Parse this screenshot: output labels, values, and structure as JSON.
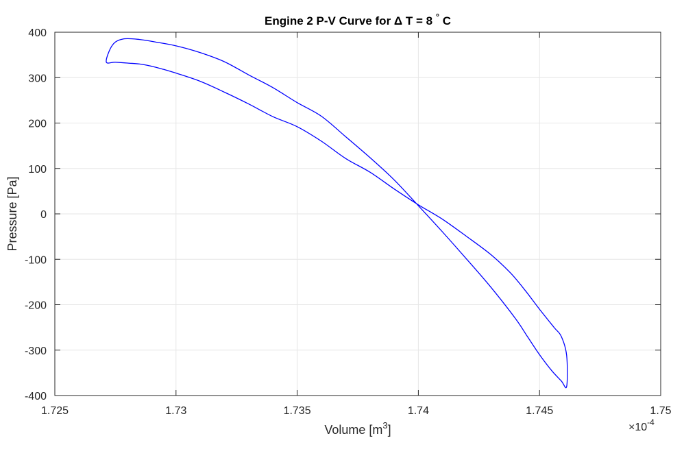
{
  "chart_data": {
    "type": "line",
    "title": "Engine 2 P-V Curve for Δ T = 8 ° C",
    "title_parts": {
      "prefix": "Engine 2 P-V Curve for ",
      "delta": "Δ",
      "mid": " T = 8 ",
      "degree": "°",
      "suffix": " C"
    },
    "xlabel": "Volume [m3]",
    "xlabel_parts": {
      "text": "Volume [m",
      "sup": "3",
      "close": "]"
    },
    "ylabel": "Pressure [Pa]",
    "x_multiplier": "×10-4",
    "x_multiplier_parts": {
      "base": "×10",
      "exp": "-4"
    },
    "xlim": [
      1.725,
      1.75
    ],
    "ylim": [
      -400,
      400
    ],
    "xticks": [
      1.725,
      1.73,
      1.735,
      1.74,
      1.745,
      1.75
    ],
    "xtick_labels": [
      "1.725",
      "1.73",
      "1.735",
      "1.74",
      "1.745",
      "1.75"
    ],
    "yticks": [
      -400,
      -300,
      -200,
      -100,
      0,
      100,
      200,
      300,
      400
    ],
    "ytick_labels": [
      "-400",
      "-300",
      "-200",
      "-100",
      "0",
      "100",
      "200",
      "300",
      "400"
    ],
    "grid": true,
    "line_color": "#0000ff",
    "series": [
      {
        "x": [
          1.72712,
          1.72738,
          1.72782,
          1.7285,
          1.7292,
          1.73,
          1.731,
          1.732,
          1.733,
          1.734,
          1.735,
          1.736,
          1.737,
          1.738,
          1.739,
          1.74,
          1.741,
          1.742,
          1.743,
          1.744,
          1.7445,
          1.745,
          1.7455,
          1.7459,
          1.74612,
          1.74612,
          1.7459,
          1.7456,
          1.745,
          1.7444,
          1.7438,
          1.743,
          1.742,
          1.741,
          1.74,
          1.739,
          1.738,
          1.737,
          1.736,
          1.735,
          1.734,
          1.733,
          1.732,
          1.731,
          1.73,
          1.7295,
          1.729,
          1.7285,
          1.728,
          1.7275,
          1.72712
        ],
        "y": [
          335,
          372,
          385,
          384,
          378,
          370,
          355,
          335,
          306,
          278,
          245,
          215,
          170,
          124,
          75,
          18,
          -40,
          -100,
          -162,
          -230,
          -270,
          -310,
          -345,
          -368,
          -380,
          -312,
          -270,
          -250,
          -210,
          -168,
          -130,
          -90,
          -50,
          -12,
          20,
          55,
          92,
          122,
          160,
          192,
          214,
          242,
          268,
          292,
          310,
          318,
          325,
          330,
          332,
          334,
          335
        ]
      }
    ]
  }
}
